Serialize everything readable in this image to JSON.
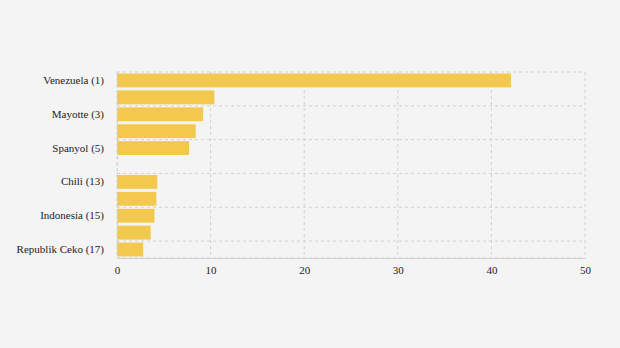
{
  "chart_data": {
    "type": "bar",
    "orientation": "horizontal",
    "categories": [
      "Venezuela (1)",
      null,
      "Mayotte (3)",
      null,
      "Spanyol (5)",
      null,
      "Chili (13)",
      null,
      "Indonesia (15)",
      null,
      "Republik Ceko (17)"
    ],
    "values": [
      42.1,
      10.4,
      9.2,
      8.4,
      7.7,
      null,
      4.3,
      4.2,
      4.0,
      3.6,
      2.8
    ],
    "color": "#f2c94c",
    "xlim": [
      0,
      50
    ],
    "xticks": [
      0,
      10,
      20,
      30,
      40,
      50
    ],
    "grid": true
  }
}
